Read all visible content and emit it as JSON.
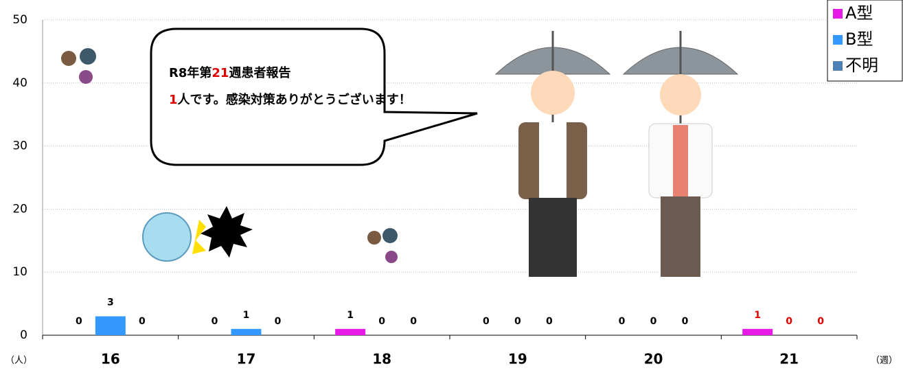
{
  "chart_data": {
    "type": "bar",
    "categories": [
      "16",
      "17",
      "18",
      "19",
      "20",
      "21"
    ],
    "series": [
      {
        "name": "A型",
        "color": "#e619e6",
        "values": [
          0,
          0,
          1,
          0,
          0,
          1
        ]
      },
      {
        "name": "B型",
        "color": "#3399ff",
        "values": [
          3,
          1,
          0,
          0,
          0,
          0
        ]
      },
      {
        "name": "不明",
        "color": "#4f7fb8",
        "values": [
          0,
          0,
          0,
          0,
          0,
          0
        ]
      }
    ],
    "ylim": [
      0,
      50
    ],
    "yticks": [
      0,
      10,
      20,
      30,
      40,
      50
    ],
    "grid": true,
    "y_unit": "（人）",
    "x_unit": "（週）",
    "legend": "top-right",
    "highlight": {
      "category": "21",
      "color": "#e00000"
    },
    "annotation": {
      "parts": [
        "R8年第",
        "21",
        "週患者報告",
        "1",
        "人です。感染対策ありがとうございます！"
      ],
      "accent_color": "#e00000"
    }
  }
}
